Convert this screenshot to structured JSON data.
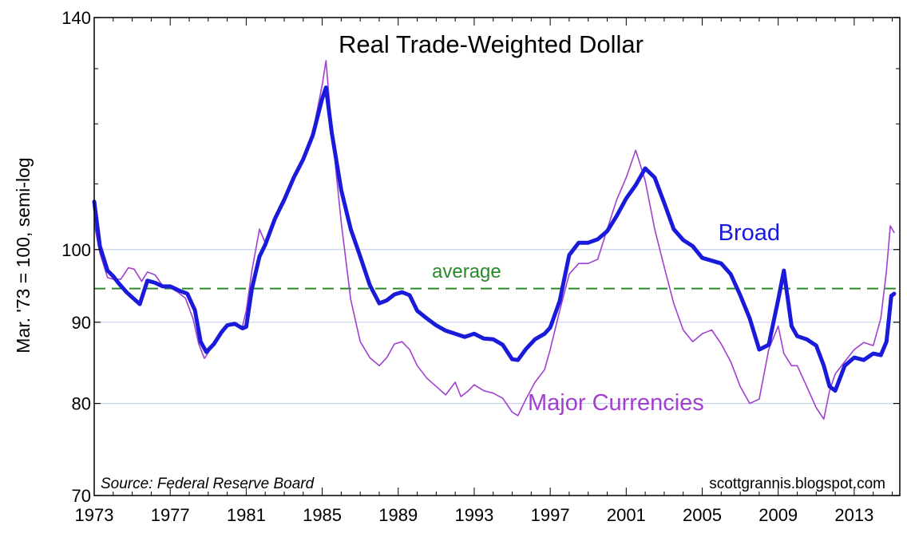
{
  "chart_data": {
    "type": "line",
    "title": "Real Trade-Weighted Dollar",
    "ylabel": "Mar. '73 = 100, semi-log",
    "xlabel": "",
    "y_scale": "log",
    "ylim": [
      70,
      140
    ],
    "xlim": [
      1973,
      2015.4
    ],
    "y_ticks": [
      70,
      80,
      90,
      100,
      140
    ],
    "x_ticks": [
      1973,
      1977,
      1981,
      1985,
      1989,
      1993,
      1997,
      2001,
      2005,
      2009,
      2013
    ],
    "grid": true,
    "average": {
      "label": "average",
      "value": 94.5
    },
    "source": "Source: Federal Reserve Board",
    "credit": "scottgrannis.blogspot.com",
    "colors": {
      "broad": "#1a1adb",
      "major": "#a040d0",
      "average": "#2a8a2a",
      "grid": "#c7d3ea"
    },
    "series": [
      {
        "name": "Broad",
        "x": [
          1973.0,
          1973.3,
          1973.7,
          1974.0,
          1974.3,
          1974.7,
          1975.0,
          1975.4,
          1975.8,
          1976.2,
          1976.6,
          1977.0,
          1977.5,
          1977.9,
          1978.3,
          1978.6,
          1978.9,
          1979.3,
          1979.7,
          1980.0,
          1980.4,
          1980.8,
          1981.0,
          1981.3,
          1981.7,
          1982.0,
          1982.5,
          1983.0,
          1983.5,
          1984.0,
          1984.5,
          1985.0,
          1985.2,
          1985.5,
          1986.0,
          1986.5,
          1987.0,
          1987.5,
          1988.0,
          1988.4,
          1988.8,
          1989.2,
          1989.6,
          1990.0,
          1990.5,
          1991.0,
          1991.5,
          1992.0,
          1992.5,
          1993.0,
          1993.5,
          1994.0,
          1994.5,
          1995.0,
          1995.3,
          1995.7,
          1996.2,
          1996.7,
          1997.0,
          1997.5,
          1998.0,
          1998.5,
          1999.0,
          1999.5,
          2000.0,
          2000.5,
          2001.0,
          2001.5,
          2002.0,
          2002.5,
          2003.0,
          2003.5,
          2004.0,
          2004.5,
          2005.0,
          2005.5,
          2006.0,
          2006.5,
          2007.0,
          2007.5,
          2008.0,
          2008.5,
          2009.0,
          2009.3,
          2009.7,
          2010.0,
          2010.5,
          2011.0,
          2011.4,
          2011.7,
          2012.0,
          2012.5,
          2013.0,
          2013.5,
          2014.0,
          2014.4,
          2014.7,
          2014.95,
          2015.1
        ],
        "values": [
          107.2,
          100.5,
          97.0,
          96.2,
          95.2,
          94.0,
          93.3,
          92.4,
          95.6,
          95.3,
          94.8,
          94.8,
          94.2,
          93.8,
          91.6,
          87.5,
          86.2,
          87.2,
          88.7,
          89.6,
          89.8,
          89.2,
          89.4,
          94.5,
          99.0,
          100.7,
          104.5,
          107.5,
          111.0,
          114.0,
          118.0,
          124.5,
          126.5,
          118.5,
          109.0,
          103.0,
          99.0,
          95.0,
          92.5,
          92.9,
          93.7,
          94.0,
          93.6,
          91.5,
          90.5,
          89.6,
          88.9,
          88.5,
          88.1,
          88.5,
          87.9,
          87.8,
          87.1,
          85.3,
          85.2,
          86.5,
          87.8,
          88.5,
          89.3,
          92.8,
          99.2,
          101.0,
          101.0,
          101.5,
          102.7,
          105.0,
          107.7,
          109.8,
          112.5,
          111.0,
          107.0,
          103.0,
          101.4,
          100.5,
          98.8,
          98.4,
          98.0,
          96.5,
          93.6,
          90.5,
          86.5,
          87.1,
          93.0,
          97.0,
          89.5,
          88.2,
          87.8,
          87.0,
          84.5,
          82.0,
          81.5,
          84.5,
          85.5,
          85.2,
          86.0,
          85.8,
          87.5,
          93.5,
          93.8
        ]
      },
      {
        "name": "Major Currencies",
        "x": [
          1973.0,
          1973.3,
          1973.7,
          1974.0,
          1974.4,
          1974.8,
          1975.1,
          1975.5,
          1975.8,
          1976.2,
          1976.6,
          1977.0,
          1977.4,
          1977.8,
          1978.2,
          1978.5,
          1978.8,
          1979.2,
          1979.6,
          1980.0,
          1980.4,
          1980.8,
          1981.0,
          1981.3,
          1981.7,
          1982.0,
          1982.5,
          1983.0,
          1983.5,
          1984.0,
          1984.5,
          1985.0,
          1985.2,
          1985.5,
          1986.0,
          1986.5,
          1987.0,
          1987.5,
          1988.0,
          1988.4,
          1988.8,
          1989.2,
          1989.6,
          1990.0,
          1990.5,
          1991.0,
          1991.5,
          1992.0,
          1992.3,
          1992.7,
          1993.0,
          1993.5,
          1994.0,
          1994.5,
          1995.0,
          1995.3,
          1995.7,
          1996.2,
          1996.7,
          1997.0,
          1997.5,
          1998.0,
          1998.5,
          1999.0,
          1999.5,
          2000.0,
          2000.5,
          2001.0,
          2001.5,
          2002.0,
          2002.5,
          2003.0,
          2003.5,
          2004.0,
          2004.5,
          2005.0,
          2005.5,
          2006.0,
          2006.5,
          2007.0,
          2007.5,
          2008.0,
          2008.5,
          2009.0,
          2009.3,
          2009.7,
          2010.0,
          2010.5,
          2011.0,
          2011.4,
          2011.7,
          2012.0,
          2012.5,
          2013.0,
          2013.5,
          2014.0,
          2014.4,
          2014.7,
          2014.9,
          2015.1
        ],
        "values": [
          103.8,
          99.5,
          96.0,
          95.8,
          95.8,
          97.4,
          97.2,
          95.5,
          96.8,
          96.4,
          94.9,
          94.6,
          94.0,
          93.2,
          90.5,
          87.2,
          85.4,
          86.8,
          88.5,
          89.5,
          89.6,
          89.4,
          91.5,
          97.0,
          103.0,
          101.0,
          104.5,
          107.0,
          110.5,
          114.0,
          118.5,
          127.0,
          131.5,
          119.0,
          104.0,
          93.0,
          87.5,
          85.5,
          84.5,
          85.5,
          87.2,
          87.5,
          86.5,
          84.5,
          83.0,
          82.0,
          81.0,
          82.5,
          80.8,
          81.5,
          82.2,
          81.5,
          81.2,
          80.6,
          79.0,
          78.6,
          80.4,
          82.5,
          84.0,
          86.5,
          91.5,
          96.5,
          98.0,
          98.0,
          98.6,
          103.0,
          107.5,
          111.0,
          115.5,
          110.5,
          103.0,
          97.5,
          92.5,
          89.0,
          87.5,
          88.5,
          89.0,
          87.2,
          85.0,
          82.0,
          80.0,
          80.5,
          86.5,
          89.5,
          86.0,
          84.5,
          84.5,
          82.0,
          79.5,
          78.2,
          81.5,
          83.5,
          85.0,
          86.5,
          87.4,
          87.0,
          90.5,
          97.0,
          103.5,
          102.5
        ]
      }
    ]
  }
}
